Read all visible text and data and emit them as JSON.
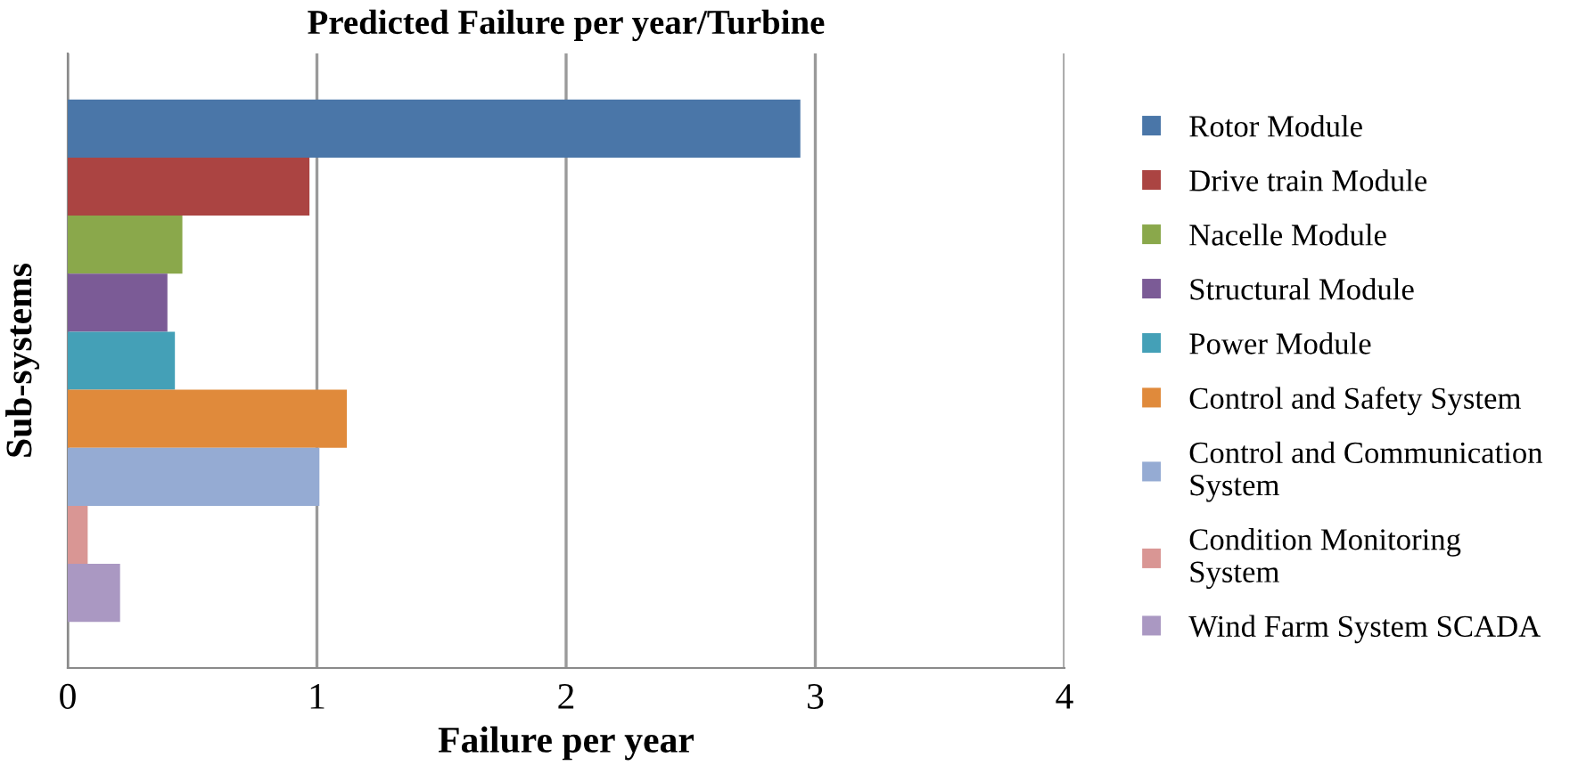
{
  "chart_data": {
    "type": "bar",
    "orientation": "horizontal",
    "title": "Predicted Failure per year/Turbine",
    "xlabel": "Failure per year",
    "ylabel": "Sub-systems",
    "categories": [
      null
    ],
    "series": [
      {
        "name": "Rotor Module",
        "color": "#4a76a8",
        "values": [
          2.94
        ]
      },
      {
        "name": "Drive train Module",
        "color": "#ab4442",
        "values": [
          0.97
        ]
      },
      {
        "name": "Nacelle Module",
        "color": "#8aa84b",
        "values": [
          0.46
        ]
      },
      {
        "name": "Structural Module",
        "color": "#7b5b96",
        "values": [
          0.4
        ]
      },
      {
        "name": "Power Module",
        "color": "#44a0b7",
        "values": [
          0.43
        ]
      },
      {
        "name": "Control and Safety System",
        "color": "#e08a3b",
        "values": [
          1.12
        ]
      },
      {
        "name": "Control and Communication System",
        "color": "#95abd3",
        "values": [
          1.01
        ]
      },
      {
        "name": "Condition Monitoring System",
        "color": "#d99694",
        "values": [
          0.08
        ]
      },
      {
        "name": "Wind Farm System SCADA",
        "color": "#aa98c2",
        "values": [
          0.21
        ]
      }
    ],
    "xlim": [
      0,
      4
    ],
    "xticks": [
      0,
      1,
      2,
      3,
      4
    ],
    "grid": "x",
    "legend": "right"
  }
}
